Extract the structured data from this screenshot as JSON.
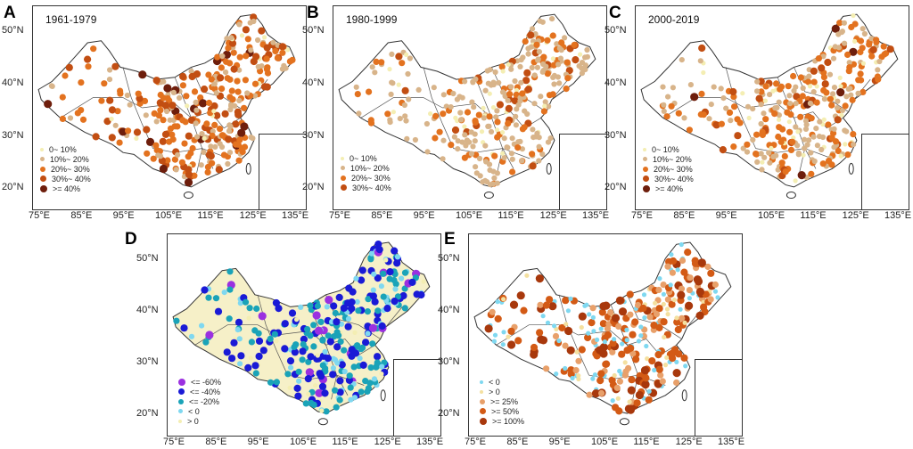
{
  "panels": [
    {
      "letter": "A",
      "period": "1961-1979",
      "legend": [
        {
          "label": "0~ 10%",
          "color": "#f4eeb3",
          "size": 4
        },
        {
          "label": "10%~ 20%",
          "color": "#d8b48a",
          "size": 5
        },
        {
          "label": "20%~ 30%",
          "color": "#e3721f",
          "size": 6
        },
        {
          "label": "30%~ 40%",
          "color": "#c24e12",
          "size": 7
        },
        {
          "label": ">= 40%",
          "color": "#6e1e0c",
          "size": 8
        }
      ],
      "xticks": [
        "75°E",
        "85°E",
        "95°E",
        "105°E",
        "115°E",
        "125°E",
        "135°E"
      ],
      "yticks": [
        "50°N",
        "40°N",
        "30°N",
        "20°N"
      ]
    },
    {
      "letter": "B",
      "period": "1980-1999",
      "legend": [
        {
          "label": "0~ 10%",
          "color": "#f4eeb3",
          "size": 4
        },
        {
          "label": "10%~ 20%",
          "color": "#d8b48a",
          "size": 5
        },
        {
          "label": "20%~ 30%",
          "color": "#e3721f",
          "size": 6
        },
        {
          "label": "30%~ 40%",
          "color": "#c24e12",
          "size": 7
        }
      ],
      "xticks": [
        "75°E",
        "85°E",
        "95°E",
        "105°E",
        "115°E",
        "125°E",
        "135°E"
      ],
      "yticks": [
        "50°N",
        "40°N",
        "30°N",
        "20°N"
      ]
    },
    {
      "letter": "C",
      "period": "2000-2019",
      "legend": [
        {
          "label": "0~ 10%",
          "color": "#f4eeb3",
          "size": 4
        },
        {
          "label": "10%~ 20%",
          "color": "#d8b48a",
          "size": 5
        },
        {
          "label": "20%~ 30%",
          "color": "#e3721f",
          "size": 6
        },
        {
          "label": "30%~ 40%",
          "color": "#c24e12",
          "size": 7
        },
        {
          "label": ">= 40%",
          "color": "#6e1e0c",
          "size": 8
        }
      ],
      "xticks": [
        "75°E",
        "85°E",
        "95°E",
        "105°E",
        "115°E",
        "125°E",
        "135°E"
      ],
      "yticks": [
        "50°N",
        "40°N",
        "30°N",
        "20°N"
      ]
    },
    {
      "letter": "D",
      "period": "",
      "legend": [
        {
          "label": "<= -60%",
          "color": "#9b30e0",
          "size": 8
        },
        {
          "label": "<= -40%",
          "color": "#1a1ad6",
          "size": 7
        },
        {
          "label": "<= -20%",
          "color": "#1aa3b8",
          "size": 6
        },
        {
          "label": "< 0",
          "color": "#7fd8f0",
          "size": 5
        },
        {
          "label": "> 0",
          "color": "#f4eeb3",
          "size": 4
        }
      ],
      "xticks": [
        "75°E",
        "85°E",
        "95°E",
        "105°E",
        "115°E",
        "125°E",
        "135°E"
      ],
      "yticks": [
        "50°N",
        "40°N",
        "30°N",
        "20°N"
      ]
    },
    {
      "letter": "E",
      "period": "",
      "legend": [
        {
          "label": "< 0",
          "color": "#7fd8f0",
          "size": 4
        },
        {
          "label": "> 0",
          "color": "#f4e0a0",
          "size": 4
        },
        {
          "label": ">= 25%",
          "color": "#e8a06a",
          "size": 6
        },
        {
          "label": ">= 50%",
          "color": "#d35a15",
          "size": 7
        },
        {
          "label": ">= 100%",
          "color": "#a8380c",
          "size": 8
        }
      ],
      "xticks": [
        "75°E",
        "85°E",
        "95°E",
        "105°E",
        "115°E",
        "125°E",
        "135°E"
      ],
      "yticks": [
        "50°N",
        "40°N",
        "30°N",
        "20°N"
      ]
    }
  ]
}
